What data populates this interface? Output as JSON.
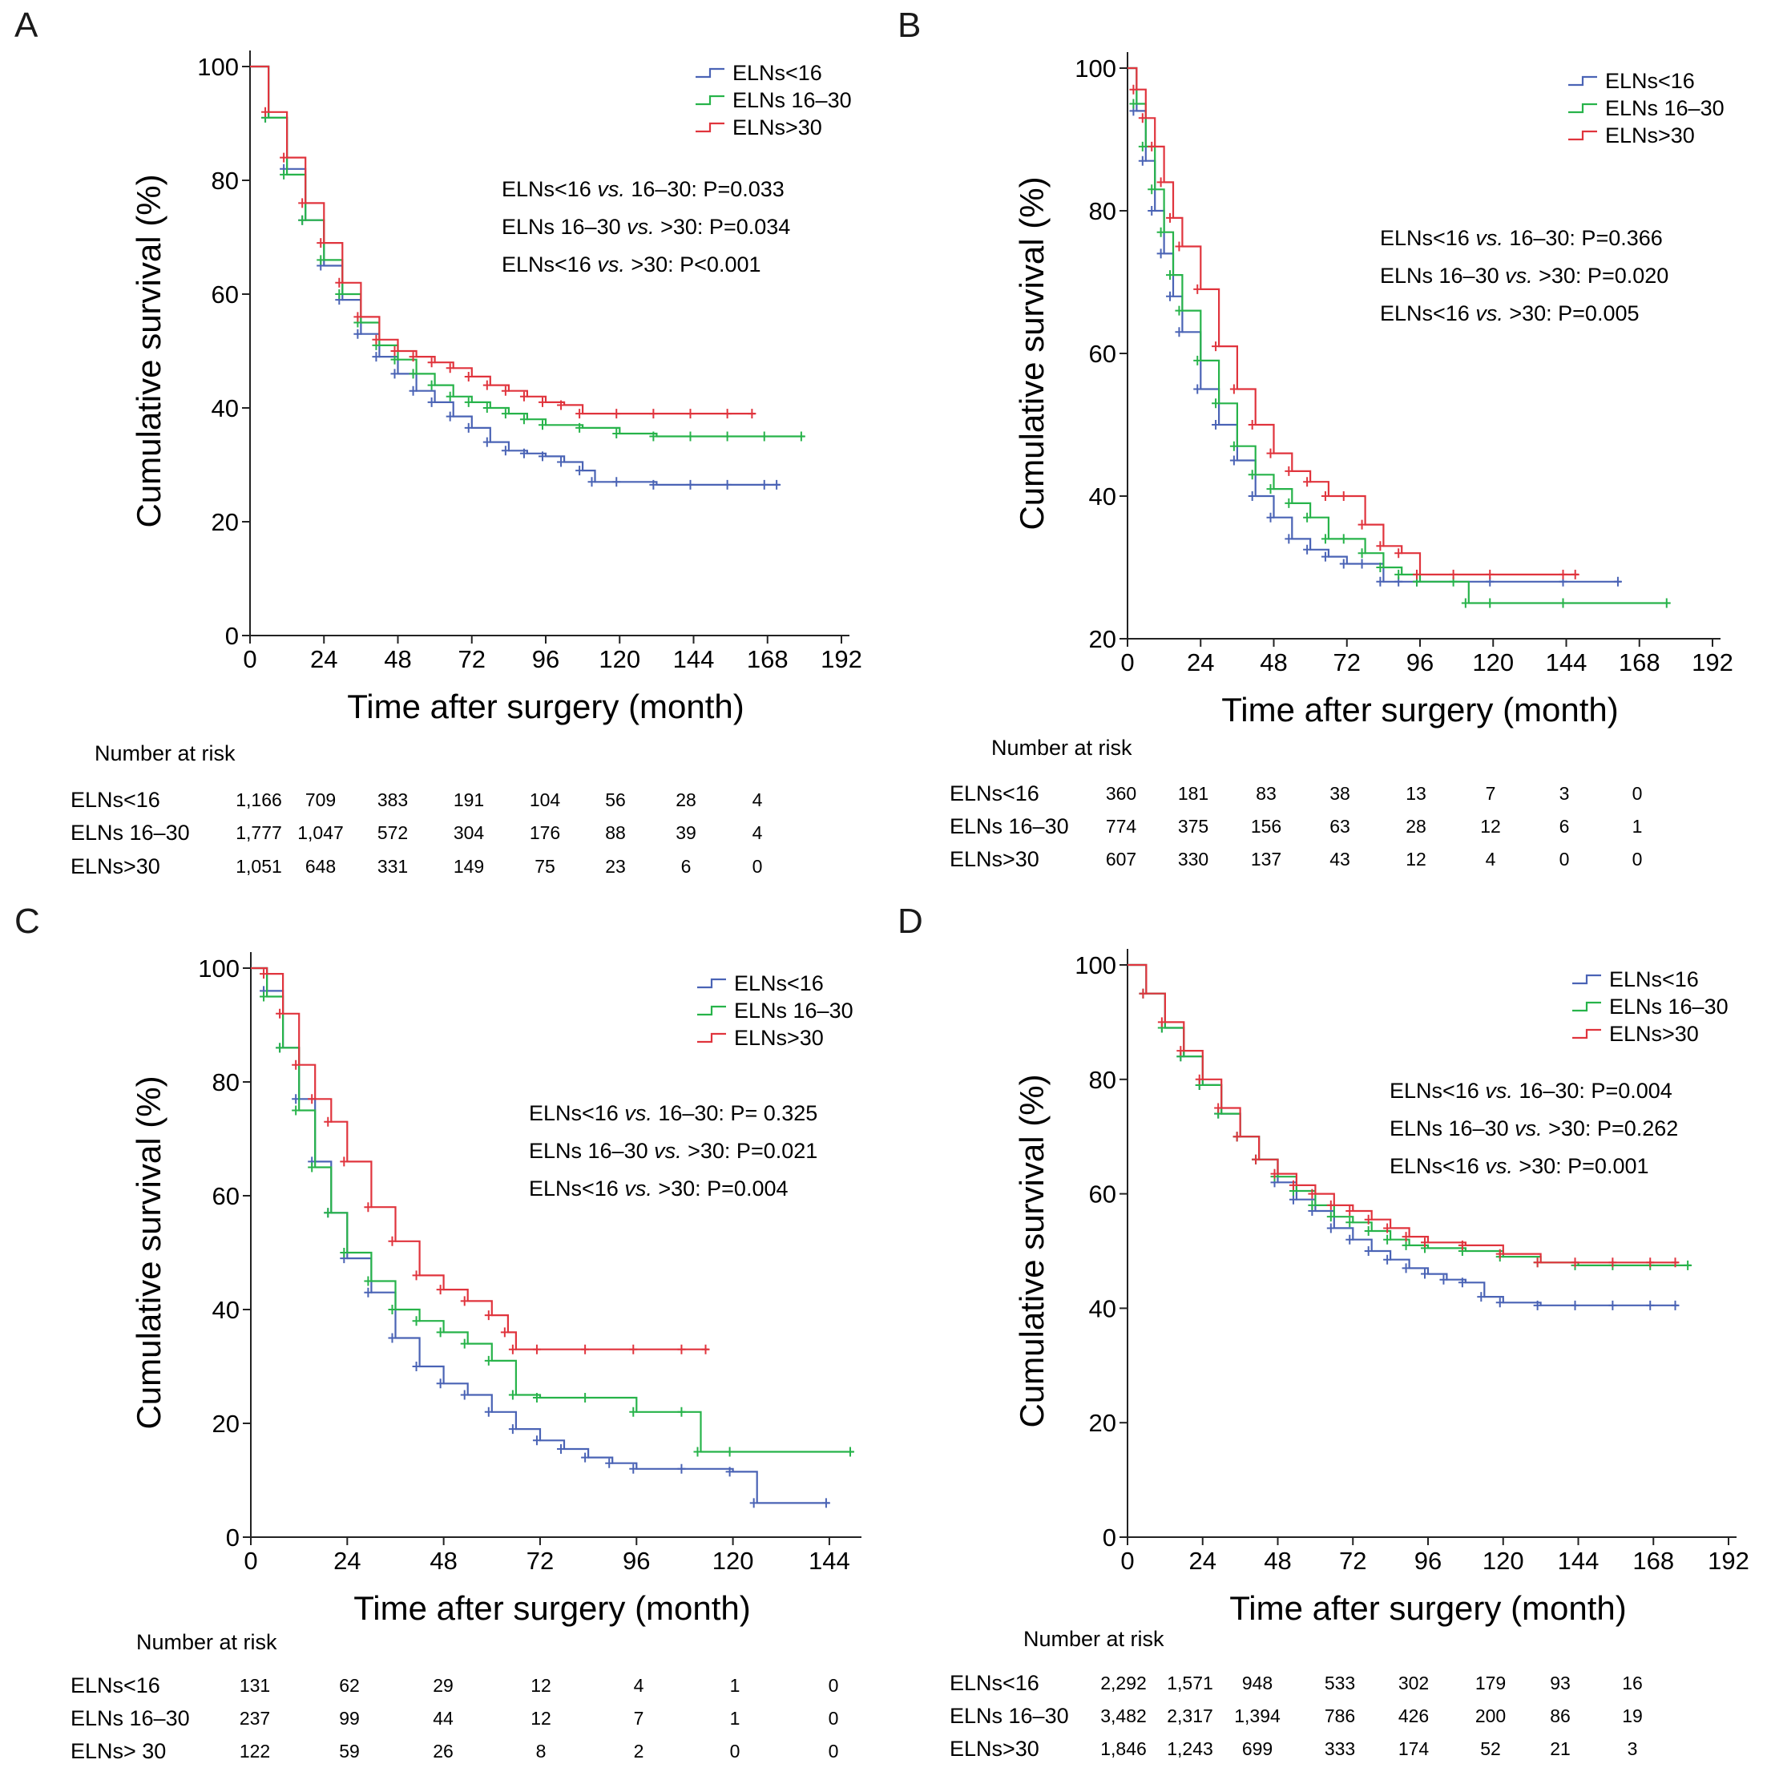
{
  "colors": {
    "blue": "#4a63b5",
    "green": "#27b34a",
    "red": "#e0343d"
  },
  "panels": [
    {
      "label": "A",
      "ylabel": "Cumulative survival (%)",
      "xlabel": "Time after surgery (month)",
      "yticks": [
        0,
        20,
        40,
        60,
        80,
        100
      ],
      "xticks": [
        0,
        24,
        48,
        72,
        96,
        120,
        144,
        168,
        192
      ],
      "legend": [
        "ELNs<16",
        "ELNs 16–30",
        "ELNs>30"
      ],
      "pvalues": [
        {
          "a": "ELNs<16 ",
          "vs": "vs.",
          "b": " 16–30: P=0.033"
        },
        {
          "a": "ELNs 16–30 ",
          "vs": "vs.",
          "b": " >30: P=0.034"
        },
        {
          "a": "ELNs<16 ",
          "vs": "vs.",
          "b": " >30: P<0.001"
        }
      ],
      "risk_title": "Number at risk",
      "risk_rows": [
        {
          "name": "ELNs<16",
          "values": [
            "1,166",
            "709",
            "383",
            "191",
            "104",
            "56",
            "28",
            "4"
          ]
        },
        {
          "name": "ELNs 16–30",
          "values": [
            "1,777",
            "1,047",
            "572",
            "304",
            "176",
            "88",
            "39",
            "4"
          ]
        },
        {
          "name": "ELNs>30",
          "values": [
            "1,051",
            "648",
            "331",
            "149",
            "75",
            "23",
            "6",
            "0"
          ]
        }
      ]
    },
    {
      "label": "B",
      "ylabel": "Cumulative survival (%)",
      "xlabel": "Time after surgery (month)",
      "yticks": [
        20,
        40,
        60,
        80,
        100
      ],
      "xticks": [
        0,
        24,
        48,
        72,
        96,
        120,
        144,
        168,
        192
      ],
      "legend": [
        "ELNs<16",
        "ELNs 16–30",
        "ELNs>30"
      ],
      "pvalues": [
        {
          "a": "ELNs<16 ",
          "vs": "vs.",
          "b": " 16–30: P=0.366"
        },
        {
          "a": "ELNs 16–30 ",
          "vs": "vs.",
          "b": " >30: P=0.020"
        },
        {
          "a": "ELNs<16 ",
          "vs": "vs.",
          "b": " >30: P=0.005"
        }
      ],
      "risk_title": "Number at risk",
      "risk_rows": [
        {
          "name": "ELNs<16",
          "values": [
            "360",
            "181",
            "83",
            "38",
            "13",
            "7",
            "3",
            "0"
          ]
        },
        {
          "name": "ELNs 16–30",
          "values": [
            "774",
            "375",
            "156",
            "63",
            "28",
            "12",
            "6",
            "1"
          ]
        },
        {
          "name": "ELNs>30",
          "values": [
            "607",
            "330",
            "137",
            "43",
            "12",
            "4",
            "0",
            "0"
          ]
        }
      ]
    },
    {
      "label": "C",
      "ylabel": "Cumulative survival (%)",
      "xlabel": "Time after surgery (month)",
      "yticks": [
        0,
        20,
        40,
        60,
        80,
        100
      ],
      "xticks": [
        0,
        24,
        48,
        72,
        96,
        120,
        144
      ],
      "legend": [
        "ELNs<16",
        "ELNs 16–30",
        "ELNs>30"
      ],
      "pvalues": [
        {
          "a": "ELNs<16 ",
          "vs": "vs.",
          "b": " 16–30: P= 0.325"
        },
        {
          "a": "ELNs 16–30 ",
          "vs": "vs.",
          "b": " >30: P=0.021"
        },
        {
          "a": "ELNs<16 ",
          "vs": "vs.",
          "b": " >30: P=0.004"
        }
      ],
      "risk_title": "Number at risk",
      "risk_rows": [
        {
          "name": "ELNs<16",
          "values": [
            "131",
            "62",
            "29",
            "12",
            "4",
            "1",
            "0"
          ]
        },
        {
          "name": "ELNs 16–30",
          "values": [
            "237",
            "99",
            "44",
            "12",
            "7",
            "1",
            "0"
          ]
        },
        {
          "name": "ELNs> 30",
          "values": [
            "122",
            "59",
            "26",
            "8",
            "2",
            "0",
            "0"
          ]
        }
      ]
    },
    {
      "label": "D",
      "ylabel": "Cumulative survival (%)",
      "xlabel": "Time after surgery (month)",
      "yticks": [
        0,
        20,
        40,
        60,
        80,
        100
      ],
      "xticks": [
        0,
        24,
        48,
        72,
        96,
        120,
        144,
        168,
        192
      ],
      "legend": [
        "ELNs<16",
        "ELNs 16–30",
        "ELNs>30"
      ],
      "pvalues": [
        {
          "a": "ELNs<16 ",
          "vs": "vs.",
          "b": " 16–30: P=0.004"
        },
        {
          "a": "ELNs 16–30 ",
          "vs": "vs.",
          "b": " >30: P=0.262"
        },
        {
          "a": "ELNs<16 ",
          "vs": "vs.",
          "b": " >30: P=0.001"
        }
      ],
      "risk_title": "Number at risk",
      "risk_rows": [
        {
          "name": "ELNs<16",
          "values": [
            "2,292",
            "1,571",
            "948",
            "533",
            "302",
            "179",
            "93",
            "16"
          ]
        },
        {
          "name": "ELNs 16–30",
          "values": [
            "3,482",
            "2,317",
            "1,394",
            "786",
            "426",
            "200",
            "86",
            "19"
          ]
        },
        {
          "name": "ELNs>30",
          "values": [
            "1,846",
            "1,243",
            "699",
            "333",
            "174",
            "52",
            "21",
            "3"
          ]
        }
      ]
    }
  ],
  "chart_data": [
    {
      "type": "line",
      "title": "A",
      "xlabel": "Time after surgery (month)",
      "ylabel": "Cumulative survival (%)",
      "xlim": [
        0,
        192
      ],
      "ylim": [
        0,
        100
      ],
      "series": [
        {
          "name": "ELNs<16",
          "x": [
            0,
            6,
            12,
            18,
            24,
            30,
            36,
            42,
            48,
            54,
            60,
            66,
            72,
            78,
            84,
            90,
            96,
            102,
            108,
            112,
            120,
            132,
            144,
            156,
            168,
            172
          ],
          "y": [
            100,
            91,
            82,
            73,
            65,
            59,
            53,
            49,
            46,
            43,
            41,
            38.5,
            36.5,
            34,
            32.5,
            32,
            31.5,
            30.5,
            29,
            27,
            27,
            26.5,
            26.5,
            26.5,
            26.5,
            26.5
          ]
        },
        {
          "name": "ELNs 16–30",
          "x": [
            0,
            6,
            12,
            18,
            24,
            30,
            36,
            42,
            48,
            54,
            60,
            66,
            72,
            78,
            84,
            90,
            96,
            108,
            120,
            132,
            144,
            156,
            168,
            180
          ],
          "y": [
            100,
            91,
            81,
            73,
            66,
            60,
            55,
            51,
            48.5,
            46,
            44,
            42,
            41,
            40,
            39,
            38,
            37,
            36.5,
            35.5,
            35,
            35,
            35,
            35,
            35
          ]
        },
        {
          "name": "ELNs>30",
          "x": [
            0,
            6,
            12,
            18,
            24,
            30,
            36,
            42,
            48,
            54,
            60,
            66,
            72,
            78,
            84,
            90,
            96,
            102,
            108,
            120,
            132,
            144,
            156,
            164
          ],
          "y": [
            100,
            92,
            84,
            76,
            69,
            62,
            56,
            52,
            50,
            49,
            48,
            47,
            45.5,
            44,
            43,
            42,
            41,
            40.5,
            39,
            39,
            39,
            39,
            39,
            39
          ]
        }
      ]
    },
    {
      "type": "line",
      "title": "B",
      "xlabel": "Time after surgery (month)",
      "ylabel": "Cumulative survival (%)",
      "xlim": [
        0,
        192
      ],
      "ylim": [
        20,
        100
      ],
      "series": [
        {
          "name": "ELNs<16",
          "x": [
            0,
            3,
            6,
            9,
            12,
            15,
            18,
            24,
            30,
            36,
            42,
            48,
            54,
            60,
            66,
            72,
            78,
            84,
            90,
            96,
            120,
            144,
            162
          ],
          "y": [
            100,
            94,
            87,
            80,
            74,
            68,
            63,
            55,
            50,
            45,
            40,
            37,
            34,
            32.5,
            31.5,
            30.5,
            30.5,
            28,
            28,
            28,
            28,
            28,
            28
          ]
        },
        {
          "name": "ELNs 16–30",
          "x": [
            0,
            3,
            6,
            9,
            12,
            15,
            18,
            24,
            30,
            36,
            42,
            48,
            54,
            60,
            66,
            72,
            78,
            84,
            90,
            96,
            108,
            112,
            120,
            144,
            178
          ],
          "y": [
            100,
            95,
            89,
            83,
            77,
            71,
            66,
            59,
            53,
            47,
            43,
            41,
            39,
            37,
            34,
            34,
            32,
            30,
            29,
            28,
            28,
            25,
            25,
            25,
            25
          ]
        },
        {
          "name": "ELNs>30",
          "x": [
            0,
            3,
            6,
            9,
            12,
            15,
            18,
            24,
            30,
            36,
            42,
            48,
            54,
            60,
            66,
            72,
            78,
            84,
            90,
            96,
            108,
            120,
            144,
            148
          ],
          "y": [
            100,
            97,
            93,
            89,
            84,
            79,
            75,
            69,
            61,
            55,
            50,
            46,
            43.5,
            42,
            40,
            40,
            36,
            33,
            32,
            29,
            29,
            29,
            29,
            29
          ]
        }
      ]
    },
    {
      "type": "line",
      "title": "C",
      "xlabel": "Time after surgery (month)",
      "ylabel": "Cumulative survival (%)",
      "xlim": [
        0,
        150
      ],
      "ylim": [
        0,
        100
      ],
      "series": [
        {
          "name": "ELNs<16",
          "x": [
            0,
            4,
            8,
            12,
            16,
            20,
            24,
            30,
            36,
            42,
            48,
            54,
            60,
            66,
            72,
            78,
            84,
            90,
            96,
            108,
            120,
            126,
            144
          ],
          "y": [
            100,
            96,
            86,
            77,
            66,
            57,
            49,
            43,
            35,
            30,
            27,
            25,
            22,
            19,
            17,
            15.5,
            14,
            13,
            12,
            12,
            11.5,
            6,
            6
          ]
        },
        {
          "name": "ELNs 16–30",
          "x": [
            0,
            4,
            8,
            12,
            16,
            20,
            24,
            30,
            36,
            42,
            48,
            54,
            60,
            66,
            72,
            84,
            96,
            108,
            112,
            120,
            150
          ],
          "y": [
            100,
            95,
            86,
            75,
            65,
            57,
            50,
            45,
            40,
            38,
            36,
            34,
            31,
            25,
            24.5,
            24.5,
            22,
            22,
            15,
            15,
            15
          ]
        },
        {
          "name": "ELNs>30",
          "x": [
            0,
            4,
            8,
            12,
            16,
            20,
            24,
            30,
            36,
            42,
            48,
            54,
            60,
            64,
            66,
            72,
            84,
            96,
            108,
            114
          ],
          "y": [
            100,
            99,
            92,
            83,
            77,
            73,
            66,
            58,
            52,
            46,
            43.5,
            41.5,
            39,
            36,
            33,
            33,
            33,
            33,
            33,
            33
          ]
        }
      ]
    },
    {
      "type": "line",
      "title": "D",
      "xlabel": "Time after surgery (month)",
      "ylabel": "Cumulative survival (%)",
      "xlim": [
        0,
        192
      ],
      "ylim": [
        0,
        100
      ],
      "series": [
        {
          "name": "ELNs<16",
          "x": [
            0,
            6,
            12,
            18,
            24,
            30,
            36,
            42,
            48,
            54,
            60,
            66,
            72,
            78,
            84,
            90,
            96,
            102,
            108,
            114,
            120,
            132,
            144,
            156,
            168,
            176
          ],
          "y": [
            100,
            95,
            89,
            84,
            79,
            74,
            70,
            66,
            62,
            59,
            57,
            54,
            52,
            50,
            48.5,
            47,
            46,
            45,
            44.5,
            42,
            41,
            40.5,
            40.5,
            40.5,
            40.5,
            40.5
          ]
        },
        {
          "name": "ELNs 16–30",
          "x": [
            0,
            6,
            12,
            18,
            24,
            30,
            36,
            42,
            48,
            54,
            60,
            66,
            72,
            78,
            84,
            90,
            96,
            108,
            120,
            132,
            144,
            156,
            168,
            180
          ],
          "y": [
            100,
            95,
            89,
            84,
            79,
            74,
            70,
            66,
            63,
            60.5,
            58,
            56,
            55,
            53.5,
            52,
            51,
            50.5,
            50,
            49,
            48,
            47.5,
            47.5,
            47.5,
            47.5
          ]
        },
        {
          "name": "ELNs>30",
          "x": [
            0,
            6,
            12,
            18,
            24,
            30,
            36,
            42,
            48,
            54,
            60,
            66,
            72,
            78,
            84,
            90,
            96,
            108,
            120,
            132,
            144,
            156,
            168,
            176
          ],
          "y": [
            100,
            95,
            90,
            85,
            80,
            75,
            70,
            66,
            63.5,
            61.5,
            60,
            58,
            57,
            55.5,
            54,
            52.5,
            51.5,
            51,
            49.5,
            48,
            48,
            48,
            48,
            48
          ]
        }
      ]
    }
  ]
}
